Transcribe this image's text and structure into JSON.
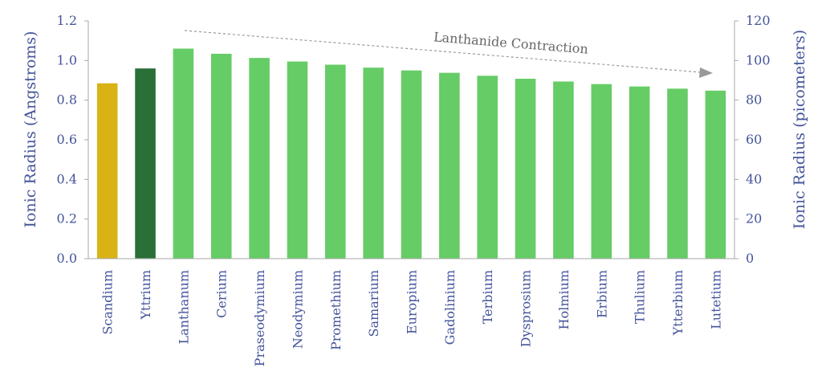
{
  "chart_data": {
    "type": "bar",
    "categories": [
      "Scandium",
      "Yttrium",
      "Lanthanum",
      "Cerium",
      "Praseodymium",
      "Neodymium",
      "Promethium",
      "Samarium",
      "Europium",
      "Gadolinium",
      "Terbium",
      "Dysprosium",
      "Holmium",
      "Erbium",
      "Thulium",
      "Ytterbium",
      "Lutetium"
    ],
    "values": [
      0.885,
      0.96,
      1.06,
      1.034,
      1.013,
      0.995,
      0.979,
      0.964,
      0.95,
      0.938,
      0.923,
      0.908,
      0.894,
      0.881,
      0.869,
      0.858,
      0.848
    ],
    "colors": [
      "#d9b216",
      "#2a6e38",
      "#66cc66",
      "#66cc66",
      "#66cc66",
      "#66cc66",
      "#66cc66",
      "#66cc66",
      "#66cc66",
      "#66cc66",
      "#66cc66",
      "#66cc66",
      "#66cc66",
      "#66cc66",
      "#66cc66",
      "#66cc66",
      "#66cc66"
    ],
    "ylabel": "Ionic Radius (Angstroms)",
    "y2label": "Ionic Radius (picometers)",
    "ylim": [
      0,
      1.2
    ],
    "y2lim": [
      0,
      120
    ],
    "yticks": [
      "0.0",
      "0.2",
      "0.4",
      "0.6",
      "0.8",
      "1.0",
      "1.2"
    ],
    "y2ticks": [
      "0",
      "20",
      "40",
      "60",
      "80",
      "100",
      "120"
    ],
    "annotation": "Lanthanide Contraction",
    "grid": false,
    "legend": "none"
  }
}
